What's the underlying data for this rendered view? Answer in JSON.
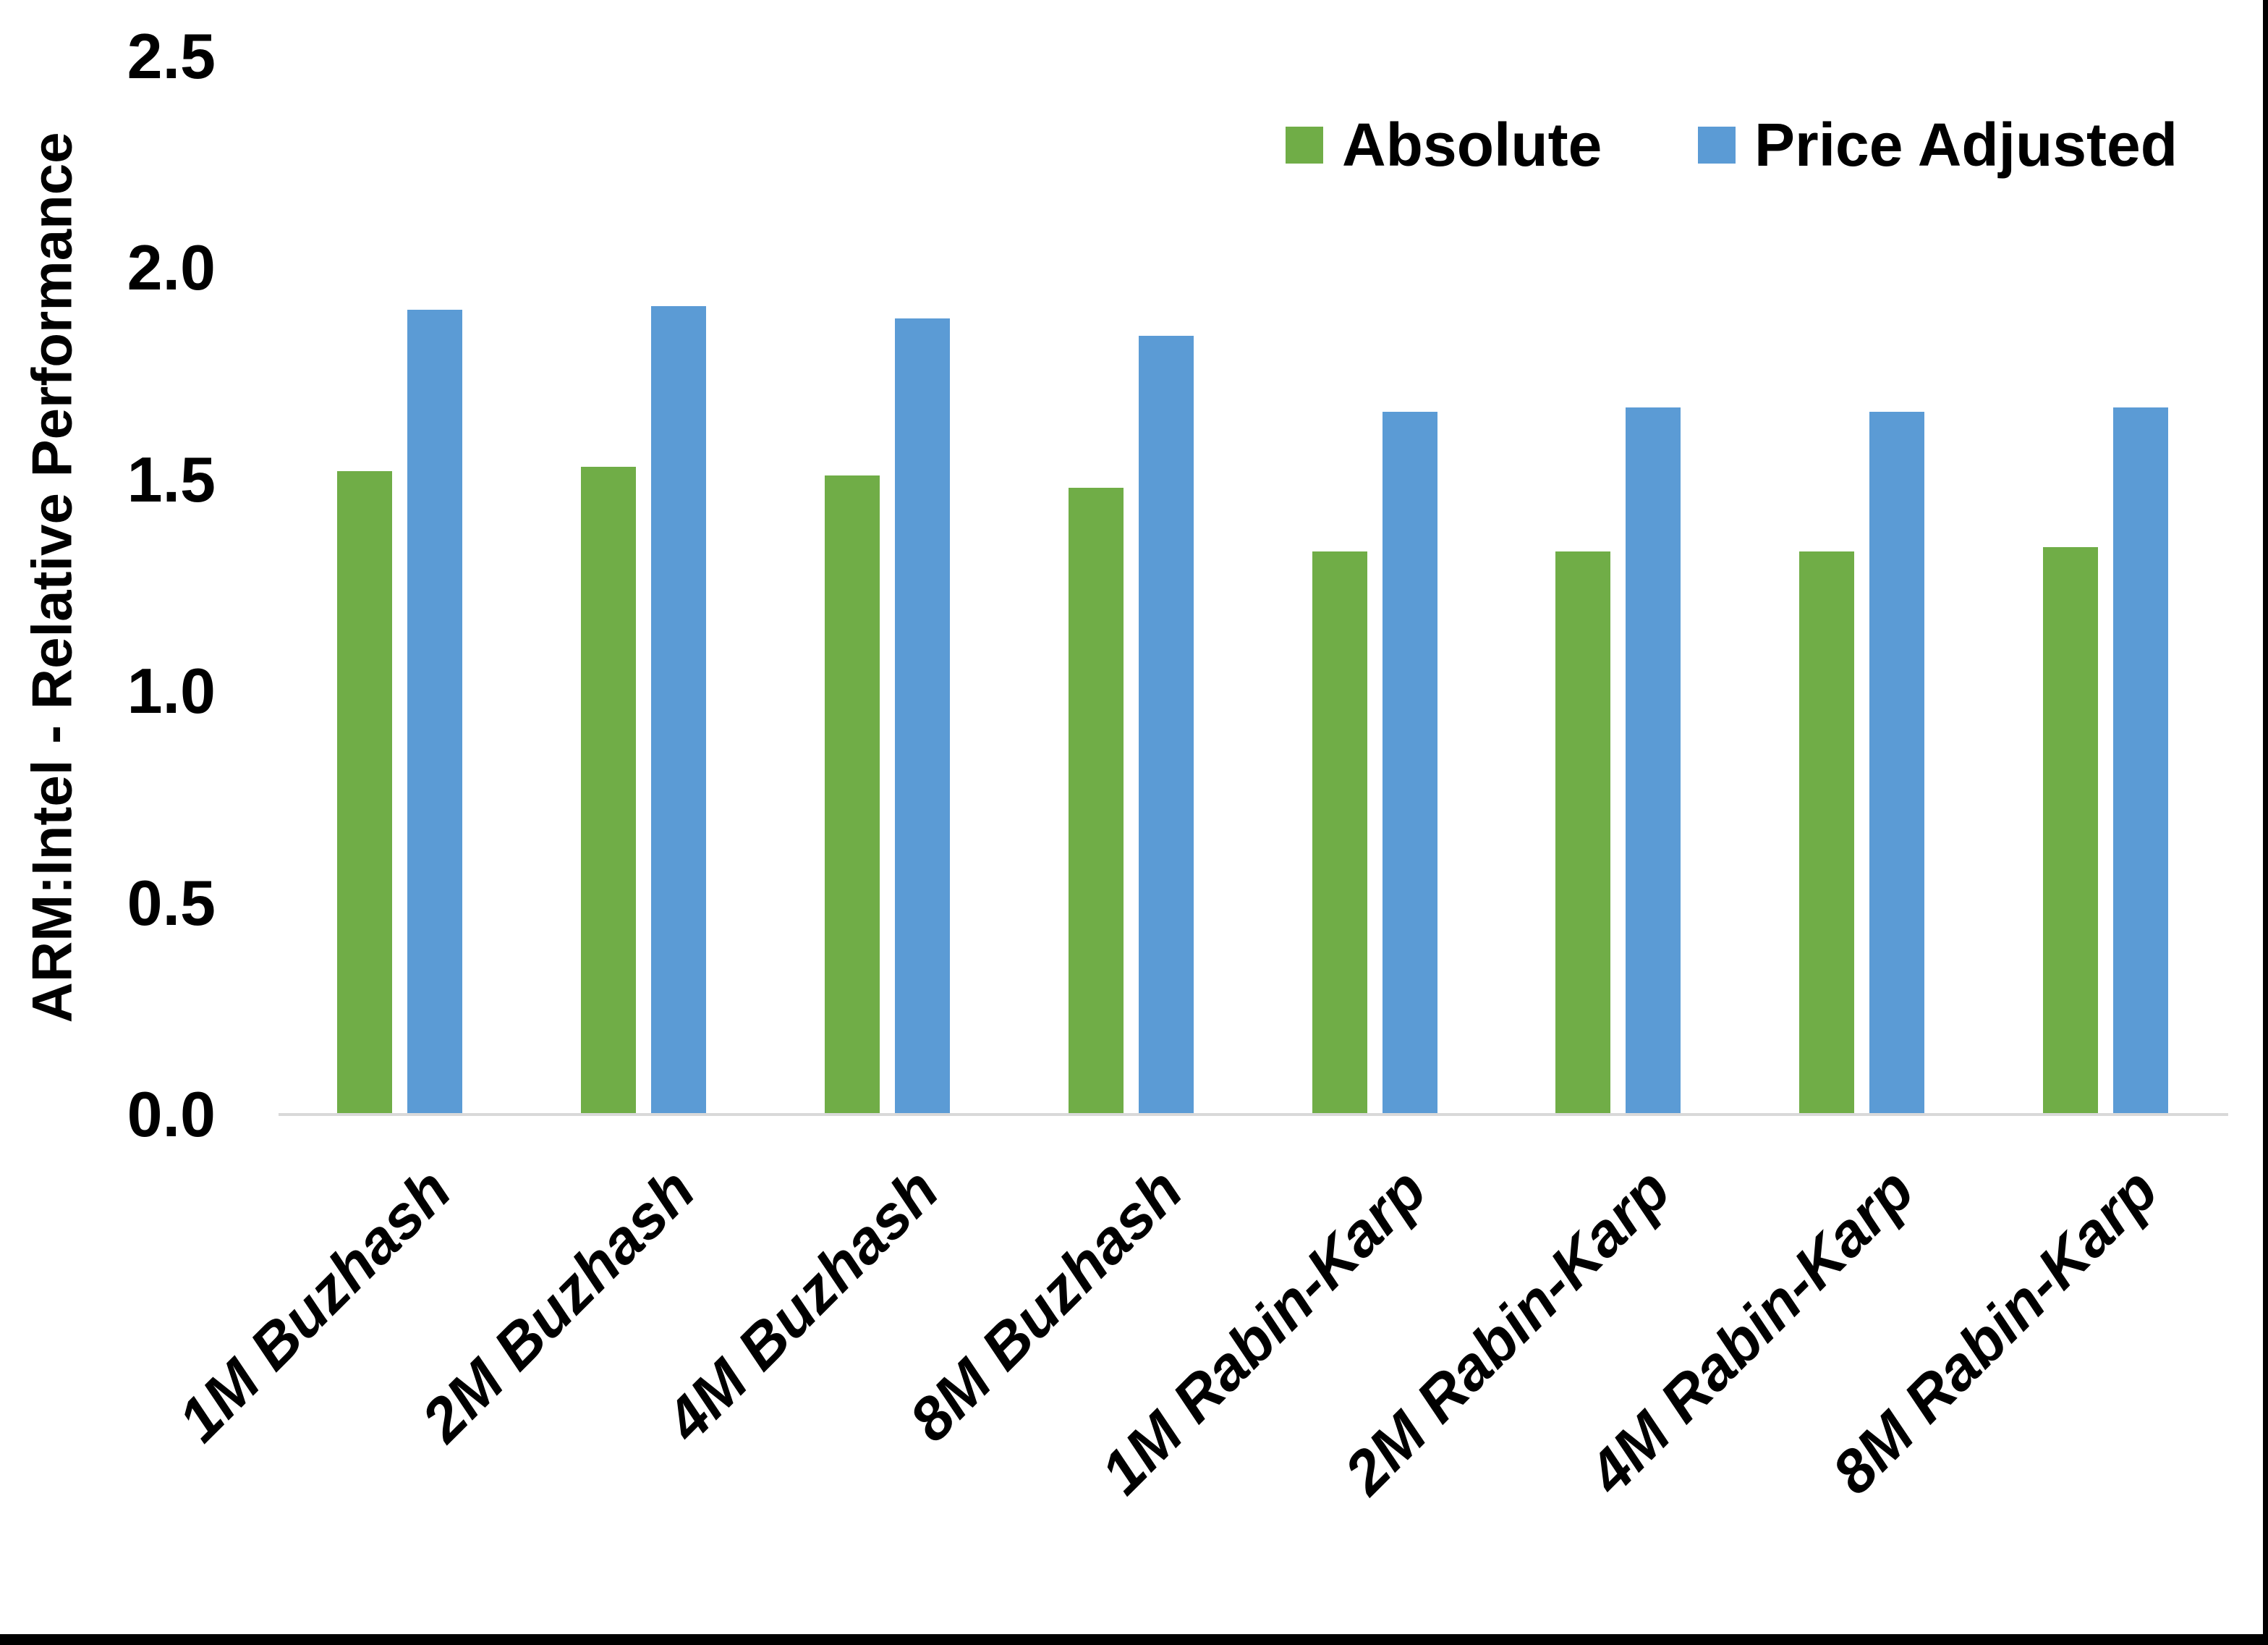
{
  "chart_data": {
    "type": "bar",
    "title": "",
    "xlabel": "",
    "ylabel": "ARM:Intel - Relative Performance",
    "ylim": [
      0,
      2.5
    ],
    "ytick_labels": [
      "0.0",
      "0.5",
      "1.0",
      "1.5",
      "2.0",
      "2.5"
    ],
    "grid": false,
    "legend_position": "top-right-inside",
    "categories": [
      "1M Buzhash",
      "2M Buzhash",
      "4M Buzhash",
      "8M Buzhash",
      "1M Rabin-Karp",
      "2M Rabin-Karp",
      "4M Rabin-Karp",
      "8M Rabin-Karp"
    ],
    "series": [
      {
        "name": "Absolute",
        "color": "#70AD47",
        "values": [
          1.52,
          1.53,
          1.51,
          1.48,
          1.33,
          1.33,
          1.33,
          1.34
        ]
      },
      {
        "name": "Price Adjusted",
        "color": "#5B9BD5",
        "values": [
          1.9,
          1.91,
          1.88,
          1.84,
          1.66,
          1.67,
          1.66,
          1.67
        ]
      }
    ]
  },
  "colors": {
    "background": "#FFFFFF",
    "axis_line": "#D9D9D9",
    "text": "#000000",
    "frame": "#000000"
  }
}
